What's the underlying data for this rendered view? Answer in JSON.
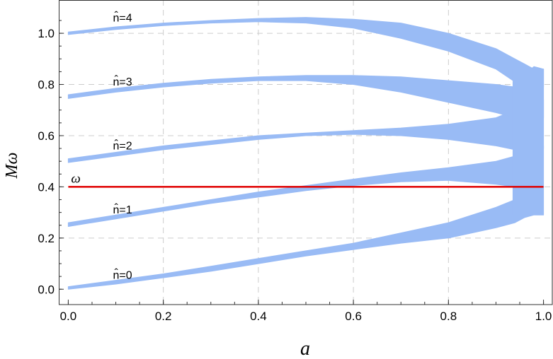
{
  "chart_data": {
    "type": "area",
    "title": "",
    "xlabel": "a",
    "ylabel": "Mω",
    "xlim": [
      -0.02,
      1.02
    ],
    "ylim": [
      -0.06,
      1.13
    ],
    "grid": true,
    "x_ticks": [
      "0.0",
      "0.2",
      "0.4",
      "0.6",
      "0.8",
      "1.0"
    ],
    "y_ticks": [
      "0.0",
      "0.2",
      "0.4",
      "0.6",
      "0.8",
      "1.0"
    ],
    "colors": {
      "band": "#99bbf5",
      "line": "#e00000",
      "grid": "#cccccc",
      "frame": "#333333"
    },
    "series": [
      {
        "name": "n̂=0",
        "x": [
          0.0,
          0.1,
          0.2,
          0.3,
          0.4,
          0.5,
          0.6,
          0.7,
          0.8,
          0.9,
          0.94,
          0.96,
          0.98,
          1.0
        ],
        "lower": [
          0.0,
          0.02,
          0.045,
          0.07,
          0.1,
          0.13,
          0.155,
          0.18,
          0.2,
          0.24,
          0.26,
          0.28,
          0.29,
          0.29
        ],
        "upper": [
          0.01,
          0.035,
          0.06,
          0.09,
          0.12,
          0.15,
          0.18,
          0.22,
          0.26,
          0.32,
          0.35,
          0.38,
          0.4,
          0.4
        ]
      },
      {
        "name": "n̂=1",
        "x": [
          0.0,
          0.1,
          0.2,
          0.3,
          0.4,
          0.5,
          0.6,
          0.7,
          0.8,
          0.9,
          0.94,
          0.96,
          0.98,
          1.0
        ],
        "lower": [
          0.245,
          0.275,
          0.305,
          0.335,
          0.36,
          0.385,
          0.405,
          0.42,
          0.425,
          0.41,
          0.4,
          0.4,
          0.4,
          0.4
        ],
        "upper": [
          0.26,
          0.29,
          0.32,
          0.35,
          0.38,
          0.405,
          0.43,
          0.455,
          0.475,
          0.5,
          0.52,
          0.54,
          0.56,
          0.56
        ]
      },
      {
        "name": "n̂=2",
        "x": [
          0.0,
          0.1,
          0.2,
          0.3,
          0.4,
          0.5,
          0.6,
          0.7,
          0.8,
          0.9,
          0.94,
          0.96,
          0.98,
          1.0
        ],
        "lower": [
          0.495,
          0.52,
          0.545,
          0.565,
          0.585,
          0.6,
          0.605,
          0.6,
          0.585,
          0.56,
          0.545,
          0.55,
          0.55,
          0.55
        ],
        "upper": [
          0.51,
          0.535,
          0.56,
          0.58,
          0.6,
          0.61,
          0.62,
          0.63,
          0.645,
          0.67,
          0.7,
          0.72,
          0.74,
          0.74
        ]
      },
      {
        "name": "n̂=3",
        "x": [
          0.0,
          0.1,
          0.2,
          0.3,
          0.4,
          0.5,
          0.6,
          0.7,
          0.8,
          0.9,
          0.94,
          0.96,
          0.98,
          1.0
        ],
        "lower": [
          0.745,
          0.77,
          0.79,
          0.805,
          0.815,
          0.815,
          0.8,
          0.77,
          0.73,
          0.69,
          0.67,
          0.67,
          0.67,
          0.67
        ],
        "upper": [
          0.76,
          0.785,
          0.805,
          0.82,
          0.83,
          0.835,
          0.835,
          0.83,
          0.815,
          0.8,
          0.79,
          0.84,
          0.87,
          0.86
        ]
      },
      {
        "name": "n̂=4",
        "x": [
          0.0,
          0.1,
          0.2,
          0.3,
          0.4,
          0.5,
          0.6,
          0.7,
          0.8,
          0.9,
          0.94,
          0.96,
          0.98,
          1.0
        ],
        "lower": [
          0.995,
          1.015,
          1.03,
          1.04,
          1.045,
          1.04,
          1.02,
          0.98,
          0.93,
          0.86,
          0.81,
          0.8,
          0.79,
          0.79
        ],
        "upper": [
          1.005,
          1.025,
          1.04,
          1.05,
          1.058,
          1.062,
          1.055,
          1.04,
          1.0,
          0.94,
          0.9,
          0.88,
          0.86,
          0.86
        ]
      }
    ],
    "hline": {
      "y": 0.4,
      "label": "ω"
    },
    "labels": [
      {
        "text": "n̂=4",
        "x": 0.1,
        "y": 1.06
      },
      {
        "text": "n̂=3",
        "x": 0.1,
        "y": 0.81
      },
      {
        "text": "n̂=2",
        "x": 0.1,
        "y": 0.56
      },
      {
        "text": "n̂=1",
        "x": 0.1,
        "y": 0.31
      },
      {
        "text": "n̂=0",
        "x": 0.1,
        "y": 0.055
      },
      {
        "text": "ω",
        "x": 0.0,
        "y": 0.43
      }
    ]
  }
}
